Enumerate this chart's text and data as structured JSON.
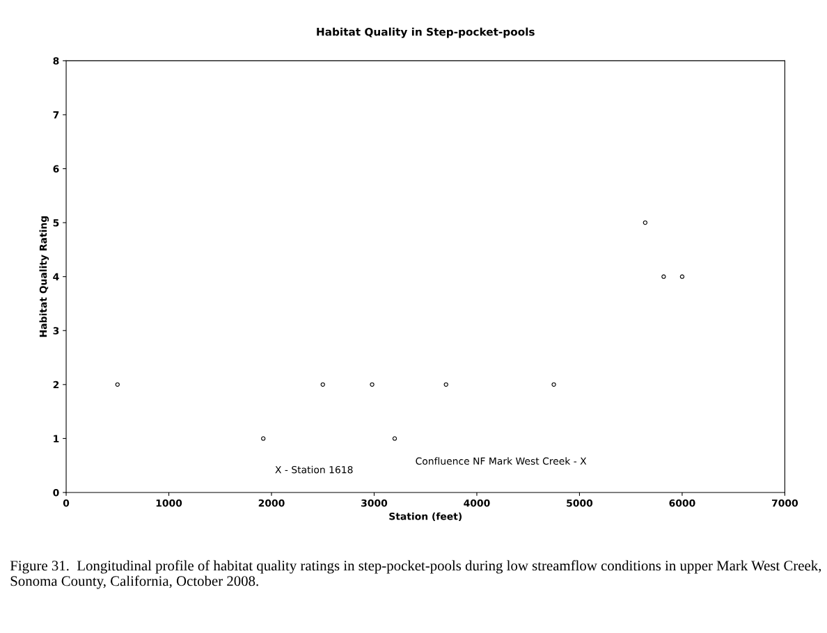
{
  "chart_data": {
    "type": "scatter",
    "title": "Habitat Quality in Step-pocket-pools",
    "xlabel": "Station (feet)",
    "ylabel": "Habitat Quality Rating",
    "x": [
      500,
      1920,
      2500,
      2980,
      3200,
      3700,
      4750,
      5640,
      5820,
      6000
    ],
    "values": [
      2,
      1,
      2,
      2,
      1,
      2,
      2,
      5,
      4,
      4
    ],
    "color": "#000000",
    "marker": "circle",
    "xlim": [
      0,
      7000
    ],
    "xticks": [
      0,
      1000,
      2000,
      3000,
      4000,
      5000,
      6000,
      7000
    ],
    "ylim": [
      0,
      8
    ],
    "yticks": [
      0,
      1,
      2,
      3,
      4,
      5,
      6,
      7,
      8
    ],
    "grid": false,
    "annotations": [
      "X - Station 1618",
      "Confluence NF Mark West Creek - X",
      "Figure 31.  Longitudinal profile of habitat quality ratings in step-pocket-pools during low streamflow conditions in upper Mark West Creek, Sonoma County, California, October 2008."
    ]
  }
}
